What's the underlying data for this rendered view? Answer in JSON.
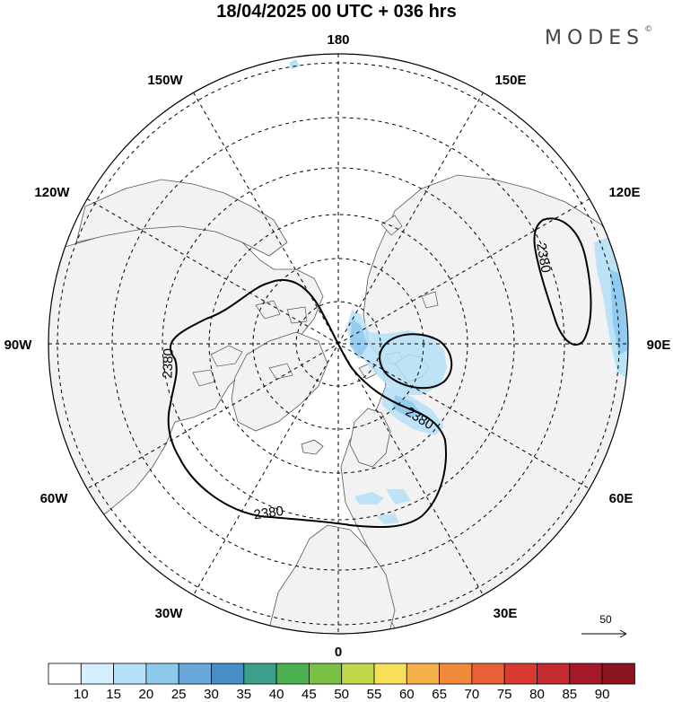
{
  "title": "18/04/2025  00 UTC  + 036 hrs",
  "brand": {
    "name": "MODES",
    "mark": "©"
  },
  "map": {
    "projection": "polar stereographic (north pole)",
    "longitude_labels": {
      "top": "180",
      "upper_left": "150W",
      "upper_right": "150E",
      "mid_left_upper": "120W",
      "mid_right_upper": "120E",
      "left": "90W",
      "right": "90E",
      "mid_left_lower": "60W",
      "mid_right_lower": "60E",
      "lower_left": "30W",
      "lower_right": "30E",
      "bottom": "0"
    },
    "contour_labels": [
      "2380",
      "2380",
      "2380",
      "2380"
    ],
    "wind_reference": {
      "value": "50"
    },
    "colors": {
      "land": "#f2f2f2",
      "ocean": "#ffffff",
      "coast": "#555555",
      "grid": "#000000",
      "contour": "#000000"
    }
  },
  "colorbar": {
    "ticks": [
      "10",
      "15",
      "20",
      "25",
      "30",
      "35",
      "40",
      "45",
      "50",
      "55",
      "60",
      "65",
      "70",
      "75",
      "80",
      "85",
      "90"
    ],
    "colors": [
      "#ffffff",
      "#d6efff",
      "#b5e0f7",
      "#8ec9ee",
      "#6aa8dc",
      "#4a8ec6",
      "#3c9f8a",
      "#4cb050",
      "#7ac143",
      "#c0d94a",
      "#f7e15a",
      "#f6b24a",
      "#f08a3a",
      "#e8603a",
      "#d93a32",
      "#c42a2e",
      "#a5182a",
      "#8a1420"
    ]
  }
}
